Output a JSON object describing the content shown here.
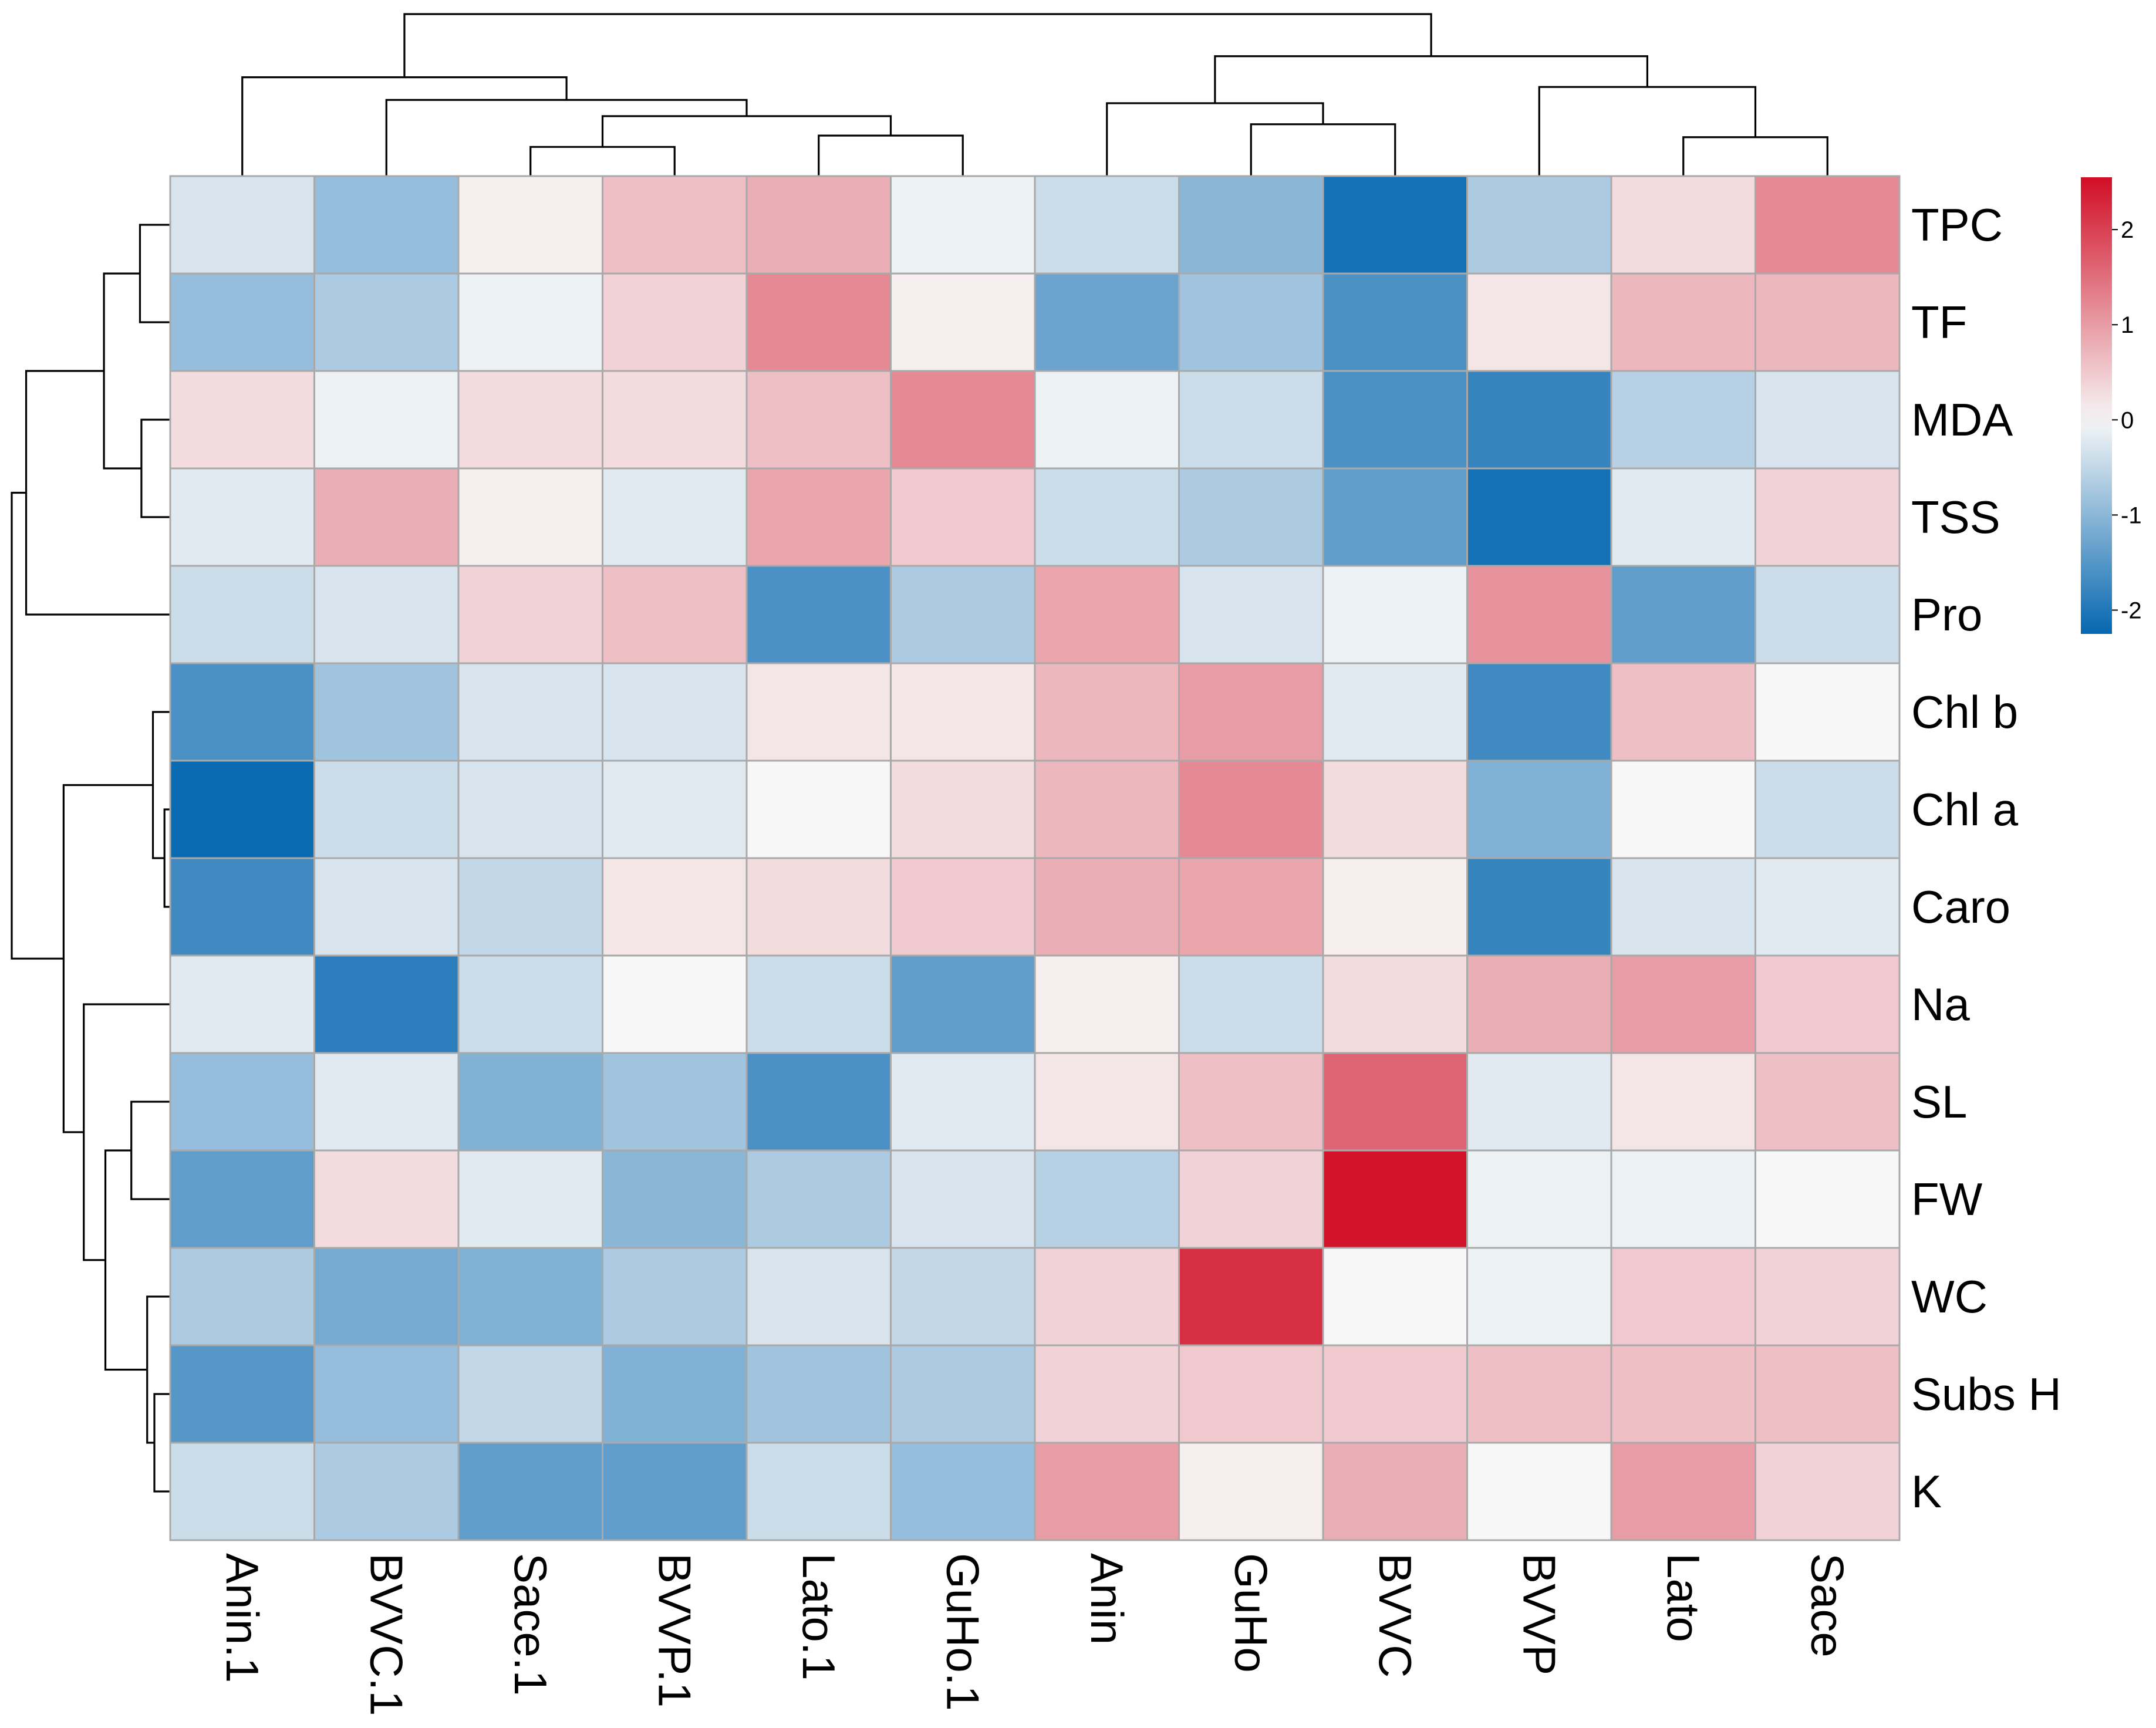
{
  "chart_data": {
    "type": "heatmap",
    "title": "",
    "xlabel": "",
    "ylabel": "",
    "rows": [
      "TPC",
      "TF",
      "MDA",
      "TSS",
      "Pro",
      "Chl b",
      "Chl a",
      "Caro",
      "Na",
      "SL",
      "FW",
      "WC",
      "Subs H",
      "K"
    ],
    "columns": [
      "Anin.1",
      "BVVC.1",
      "Sace.1",
      "BVVP.1",
      "Lato.1",
      "GuHo.1",
      "Anin",
      "GuHo",
      "BVVC",
      "BVVP",
      "Lato",
      "Sace"
    ],
    "values": [
      [
        -0.3,
        -0.9,
        0.1,
        0.6,
        0.8,
        -0.1,
        -0.4,
        -1.0,
        -2.1,
        -0.7,
        0.3,
        1.2
      ],
      [
        -0.9,
        -0.7,
        -0.1,
        0.4,
        1.2,
        0.1,
        -1.3,
        -0.8,
        -1.6,
        0.2,
        0.7,
        0.7
      ],
      [
        0.3,
        -0.1,
        0.3,
        0.3,
        0.6,
        1.2,
        -0.1,
        -0.4,
        -1.6,
        -1.8,
        -0.6,
        -0.3
      ],
      [
        -0.2,
        0.8,
        0.1,
        -0.2,
        0.9,
        0.5,
        -0.4,
        -0.7,
        -1.4,
        -2.1,
        -0.2,
        0.4
      ],
      [
        -0.4,
        -0.3,
        0.4,
        0.6,
        -1.6,
        -0.7,
        0.9,
        -0.3,
        -0.1,
        1.1,
        -1.4,
        -0.4
      ],
      [
        -1.6,
        -0.8,
        -0.3,
        -0.3,
        0.2,
        0.2,
        0.7,
        1.0,
        -0.2,
        -1.7,
        0.6,
        0.0
      ],
      [
        -2.2,
        -0.4,
        -0.3,
        -0.2,
        0.0,
        0.3,
        0.7,
        1.2,
        0.3,
        -1.1,
        0.0,
        -0.4
      ],
      [
        -1.7,
        -0.3,
        -0.5,
        0.2,
        0.3,
        0.5,
        0.8,
        0.9,
        0.1,
        -1.8,
        -0.3,
        -0.2
      ],
      [
        -0.2,
        -1.9,
        -0.4,
        0.0,
        -0.4,
        -1.4,
        0.1,
        -0.4,
        0.3,
        0.8,
        1.0,
        0.5
      ],
      [
        -0.9,
        -0.2,
        -1.1,
        -0.8,
        -1.6,
        -0.2,
        0.2,
        0.6,
        1.6,
        -0.2,
        0.2,
        0.6
      ],
      [
        -1.4,
        0.3,
        -0.2,
        -1.0,
        -0.7,
        -0.3,
        -0.6,
        0.4,
        2.5,
        -0.1,
        -0.1,
        0.0
      ],
      [
        -0.7,
        -1.2,
        -1.1,
        -0.7,
        -0.3,
        -0.5,
        0.4,
        2.2,
        0.0,
        -0.1,
        0.5,
        0.4
      ],
      [
        -1.5,
        -0.9,
        -0.5,
        -1.1,
        -0.8,
        -0.7,
        0.4,
        0.5,
        0.5,
        0.6,
        0.6,
        0.6
      ],
      [
        -0.4,
        -0.7,
        -1.4,
        -1.4,
        -0.4,
        -0.9,
        1.0,
        0.1,
        0.8,
        0.0,
        1.0,
        0.4
      ]
    ],
    "legend": {
      "position": "right",
      "ticks": [
        "2",
        "1",
        "0",
        "-1",
        "-2"
      ],
      "tick_values": [
        2,
        1,
        0,
        -1,
        -2
      ],
      "range": [
        -2.25,
        2.55
      ]
    },
    "color_scale": {
      "low": "#0567b0",
      "mid": "#f7f7f7",
      "high": "#d10e26"
    },
    "column_dendrogram": {
      "leaves_in_order": [
        "Anin.1",
        "BVVC.1",
        "Sace.1",
        "BVVP.1",
        "Lato.1",
        "GuHo.1",
        "Anin",
        "GuHo",
        "BVVC",
        "BVVP",
        "Lato",
        "Sace"
      ],
      "merges": [
        {
          "a": "Sace.1",
          "b": "BVVP.1",
          "height": 0.18
        },
        {
          "a": "Lato.1",
          "b": "GuHo.1",
          "height": 0.25
        },
        {
          "a": "Sace.1+BVVP.1",
          "b": "Lato.1+GuHo.1",
          "height": 0.37
        },
        {
          "a": "BVVC.1",
          "b": "Sace.1+BVVP.1+Lato.1+GuHo.1",
          "height": 0.47
        },
        {
          "a": "Anin.1",
          "b": "BVVC.1+Sace.1+BVVP.1+Lato.1+GuHo.1",
          "height": 0.61
        },
        {
          "a": "GuHo",
          "b": "BVVC",
          "height": 0.32
        },
        {
          "a": "Anin",
          "b": "GuHo+BVVC",
          "height": 0.45
        },
        {
          "a": "Lato",
          "b": "Sace",
          "height": 0.24
        },
        {
          "a": "BVVP",
          "b": "Lato+Sace",
          "height": 0.55
        },
        {
          "a": "Anin+GuHo+BVVC",
          "b": "BVVP+Lato+Sace",
          "height": 0.74
        },
        {
          "a": "left-cluster",
          "b": "right-cluster",
          "height": 1.0
        }
      ]
    },
    "row_dendrogram": {
      "leaves_in_order": [
        "TPC",
        "TF",
        "MDA",
        "TSS",
        "Pro",
        "Chl b",
        "Chl a",
        "Caro",
        "Na",
        "SL",
        "FW",
        "WC",
        "Subs H",
        "K"
      ],
      "merges": [
        {
          "a": "TPC",
          "b": "TF",
          "height": 0.21
        },
        {
          "a": "MDA",
          "b": "TSS",
          "height": 0.2
        },
        {
          "a": "TPC+TF",
          "b": "MDA+TSS",
          "height": 0.46
        },
        {
          "a": "Pro",
          "b": "TPC+TF+MDA+TSS",
          "height": 1.0
        },
        {
          "a": "Chl a",
          "b": "Caro",
          "height": 0.04
        },
        {
          "a": "Chl b",
          "b": "Chl a+Caro",
          "height": 0.12
        },
        {
          "a": "Subs H",
          "b": "K",
          "height": 0.11
        },
        {
          "a": "WC",
          "b": "Subs H+K",
          "height": 0.16
        },
        {
          "a": "SL",
          "b": "FW",
          "height": 0.27
        },
        {
          "a": "SL+FW",
          "b": "WC+Subs H+K",
          "height": 0.45
        },
        {
          "a": "Na",
          "b": "SL+FW+WC+Subs H+K",
          "height": 0.6
        },
        {
          "a": "Chl b+Chl a+Caro",
          "b": "Na+SL+FW+WC+Subs H+K",
          "height": 0.74
        },
        {
          "a": "upper-cluster",
          "b": "lower-cluster",
          "height": 1.1
        }
      ]
    }
  }
}
